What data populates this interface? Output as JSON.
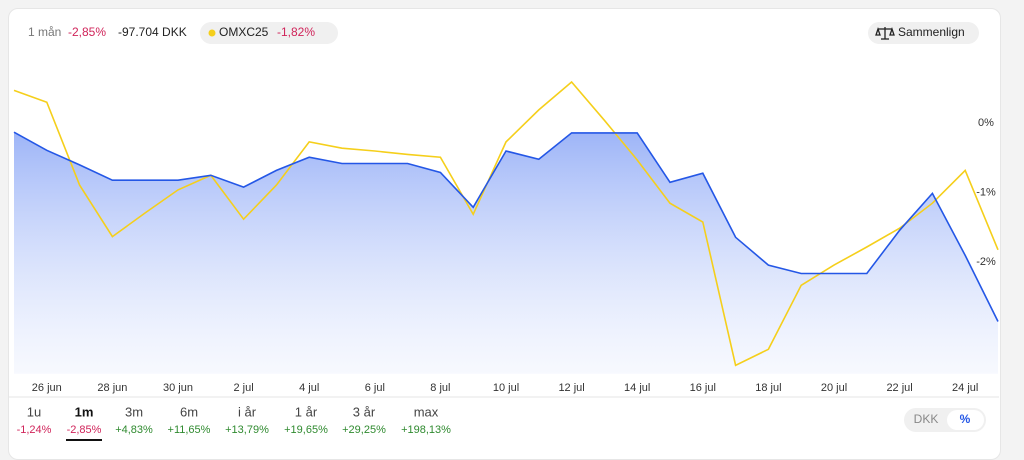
{
  "header": {
    "period": "1 mån",
    "change_pct": "-2,85%",
    "change_abs": "-97.704 DKK",
    "index_change": "-1,82%",
    "compare": "Sammenlign"
  },
  "chart_data": {
    "type": "line",
    "categories": [
      null,
      "26 jun",
      null,
      "28 jun",
      null,
      "30 jun",
      null,
      "2 jul",
      null,
      "4 jul",
      null,
      "6 jul",
      null,
      "8 jul",
      null,
      "10 jul",
      null,
      "12 jul",
      null,
      "14 jul",
      null,
      "16 jul",
      null,
      "18 jul",
      null,
      "20 jul",
      null,
      "22 jul",
      null,
      "24 jul",
      null
    ],
    "series": [
      {
        "color": "#2457e6",
        "values": [
          -0.13,
          -0.39,
          -0.6,
          -0.82,
          -0.82,
          -0.82,
          -0.75,
          -0.92,
          -0.68,
          -0.49,
          -0.58,
          -0.58,
          -0.58,
          -0.71,
          -1.21,
          -0.4,
          -0.52,
          -0.14,
          -0.14,
          -0.14,
          -0.85,
          -0.72,
          -1.64,
          -2.04,
          -2.16,
          -2.16,
          -2.16,
          -1.54,
          -1.01,
          -1.9,
          -2.85
        ]
      },
      {
        "name": "OMXC25",
        "color": "#f5cf1b",
        "values": [
          0.47,
          0.3,
          -0.89,
          -1.63,
          -1.29,
          -0.96,
          -0.75,
          -1.38,
          -0.89,
          -0.27,
          -0.36,
          -0.4,
          -0.45,
          -0.49,
          -1.31,
          -0.27,
          0.19,
          0.59,
          0.04,
          -0.53,
          -1.15,
          -1.42,
          -3.48,
          -3.25,
          -2.33,
          -2.04,
          -1.78,
          -1.51,
          -1.15,
          -0.68,
          -1.82
        ]
      }
    ],
    "ylim": [
      -3.6,
      1
    ],
    "yticks": [
      {
        "value": 0,
        "label": "0%"
      },
      {
        "value": -1,
        "label": "-1%"
      },
      {
        "value": -2,
        "label": "-2%"
      }
    ]
  },
  "footer": {
    "tabs": [
      [
        "1u",
        "-1,24%"
      ],
      [
        "1m",
        "-2,85%"
      ],
      [
        "3m",
        "+4,83%"
      ],
      [
        "6m",
        "+11,65%"
      ],
      [
        "i år",
        "+13,79%"
      ],
      [
        "1 år",
        "+19,65%"
      ],
      [
        "3 år",
        "+29,25%"
      ],
      [
        "max",
        "+198,13%"
      ]
    ],
    "selected": 1,
    "units": [
      "DKK",
      "%"
    ]
  }
}
